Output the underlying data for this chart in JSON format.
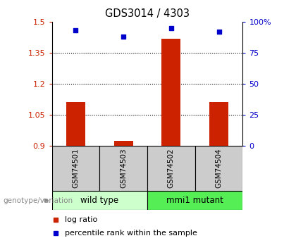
{
  "title": "GDS3014 / 4303",
  "samples": [
    "GSM74501",
    "GSM74503",
    "GSM74502",
    "GSM74504"
  ],
  "log_ratios": [
    1.11,
    0.925,
    1.42,
    1.11
  ],
  "percentile_ranks": [
    93,
    88,
    95,
    92
  ],
  "ylim_left": [
    0.9,
    1.5
  ],
  "ylim_right": [
    0,
    100
  ],
  "yticks_left": [
    0.9,
    1.05,
    1.2,
    1.35,
    1.5
  ],
  "ytick_labels_left": [
    "0.9",
    "1.05",
    "1.2",
    "1.35",
    "1.5"
  ],
  "yticks_right": [
    0,
    25,
    50,
    75,
    100
  ],
  "ytick_labels_right": [
    "0",
    "25",
    "50",
    "75",
    "100%"
  ],
  "grid_lines": [
    1.05,
    1.2,
    1.35
  ],
  "bar_color": "#cc2200",
  "scatter_color": "#0000cc",
  "groups": [
    {
      "label": "wild type",
      "indices": [
        0,
        1
      ],
      "color": "#ccffcc"
    },
    {
      "label": "mmi1 mutant",
      "indices": [
        2,
        3
      ],
      "color": "#55ee55"
    }
  ],
  "sample_box_color": "#cccccc",
  "legend_bar_label": "log ratio",
  "legend_scatter_label": "percentile rank within the sample",
  "genotype_label": "genotype/variation"
}
